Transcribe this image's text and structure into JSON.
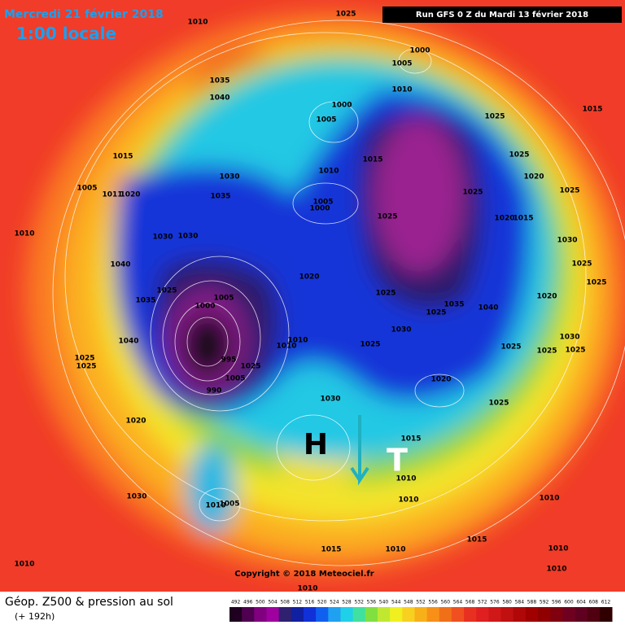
{
  "header": {
    "date": "Mercredi 21 février 2018",
    "time": "1:00 locale",
    "run": "Run GFS 0 Z du Mardi 13 février 2018"
  },
  "footer": {
    "title": "Géop. Z500 & pression au sol",
    "lead": "(+ 192h)",
    "copyright": "Copyright © 2018 Meteociel.fr"
  },
  "pressure_centers": {
    "high": "H",
    "low": "T"
  },
  "isobar_labels": [
    "1025",
    "1010",
    "1000",
    "1005",
    "1010",
    "1035",
    "1040",
    "1000",
    "1005",
    "1015",
    "1030",
    "1035",
    "1005",
    "1011",
    "1020",
    "1010",
    "1015",
    "1005",
    "1000",
    "1025",
    "1025",
    "1025",
    "1020",
    "1025",
    "1025",
    "1015",
    "1020",
    "1015",
    "1010",
    "1030",
    "1030",
    "1030",
    "1040",
    "1025",
    "1025",
    "1005",
    "1000",
    "1025",
    "1035",
    "1020",
    "1025",
    "1025",
    "1035",
    "1040",
    "1020",
    "1030",
    "1025",
    "1040",
    "1010",
    "1010",
    "1030",
    "1025",
    "1025",
    "1025",
    "1025",
    "1025",
    "995",
    "1005",
    "990",
    "1025",
    "1020",
    "1030",
    "1025",
    "1020",
    "1015",
    "1010",
    "1010",
    "1030",
    "1005",
    "1010",
    "1010",
    "1015",
    "1015",
    "1010",
    "1010",
    "1010",
    "1010",
    "1010"
  ],
  "colorbar": {
    "ticks": [
      492,
      496,
      500,
      504,
      508,
      512,
      516,
      520,
      524,
      528,
      532,
      536,
      540,
      544,
      548,
      552,
      556,
      560,
      564,
      568,
      572,
      576,
      580,
      584,
      588,
      592,
      596,
      600,
      604,
      608,
      612
    ]
  }
}
